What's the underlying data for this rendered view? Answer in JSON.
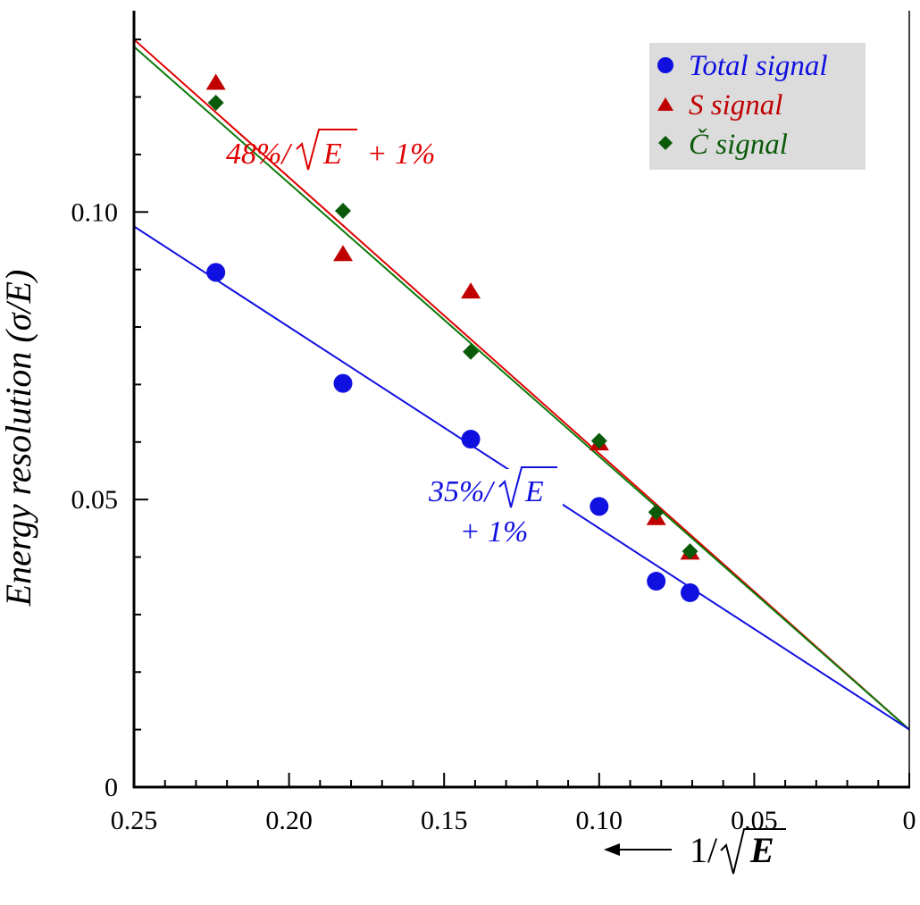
{
  "chart_data": {
    "type": "scatter",
    "title": "",
    "xlabel_prefix": "1/",
    "xlabel_var": "E",
    "ylabel": "Energy resolution (σ/E)",
    "xlim": [
      0.25,
      0
    ],
    "ylim": [
      0,
      0.135
    ],
    "x_reversed": true,
    "grid": false,
    "legend_position": "top-right",
    "x_ticks": [
      {
        "value": 0.25,
        "label": "0.25"
      },
      {
        "value": 0.2,
        "label": "0.20"
      },
      {
        "value": 0.15,
        "label": "0.15"
      },
      {
        "value": 0.1,
        "label": "0.10"
      },
      {
        "value": 0.05,
        "label": "0.05"
      },
      {
        "value": 0,
        "label": "0"
      }
    ],
    "y_ticks": [
      {
        "value": 0,
        "label": "0"
      },
      {
        "value": 0.05,
        "label": "0.05"
      },
      {
        "value": 0.1,
        "label": "0.10"
      }
    ],
    "series": [
      {
        "name": "Total signal",
        "marker": "circle",
        "color": "#1010e0",
        "x": [
          0.2236,
          0.1826,
          0.1414,
          0.1,
          0.0816,
          0.0707
        ],
        "y": [
          0.0895,
          0.0702,
          0.0605,
          0.0488,
          0.0358,
          0.0338
        ]
      },
      {
        "name": "S signal",
        "marker": "triangle",
        "color": "#c00000",
        "x": [
          0.2236,
          0.1826,
          0.1414,
          0.1,
          0.0816,
          0.0707
        ],
        "y": [
          0.1225,
          0.0927,
          0.0862,
          0.0598,
          0.0468,
          0.0408
        ]
      },
      {
        "name": "Č signal",
        "marker": "diamond",
        "color": "#0a5a0a",
        "x": [
          0.2236,
          0.1826,
          0.1414,
          0.1,
          0.0816,
          0.0707
        ],
        "y": [
          0.119,
          0.1002,
          0.0757,
          0.0602,
          0.0478,
          0.041
        ]
      }
    ],
    "fits": [
      {
        "name": "fit-s",
        "color": "#e00000",
        "slope": 0.48,
        "intercept": 0.01
      },
      {
        "name": "fit-c",
        "color": "#0a7a0a",
        "slope": 0.475,
        "intercept": 0.01
      },
      {
        "name": "fit-total",
        "color": "#1010e0",
        "slope": 0.35,
        "intercept": 0.01
      }
    ],
    "annotations": {
      "s_fit": {
        "prefix": "48%/",
        "var": "E",
        "suffix": " + 1%",
        "color": "#e00000"
      },
      "total_fit": {
        "line1_prefix": "35%/",
        "line1_var": "E",
        "line2": "+ 1%",
        "color": "#1010e0"
      }
    },
    "legend_bg": "#dcdcdc"
  }
}
